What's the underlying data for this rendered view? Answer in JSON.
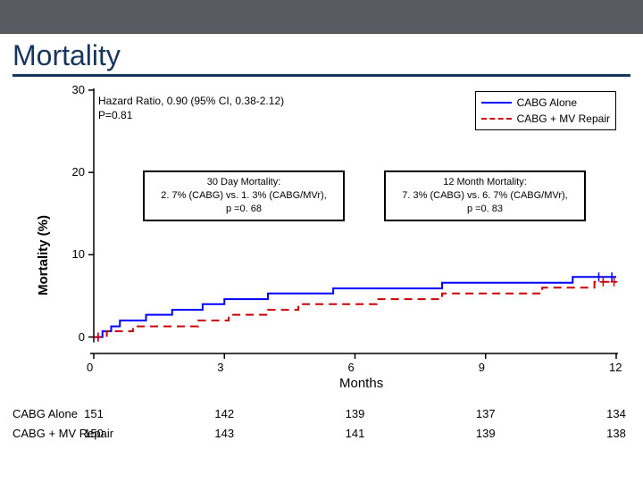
{
  "colors": {
    "top_bar": "#5a5a63",
    "title": "#17365d",
    "underline": "#17365d",
    "series_cabg": "#0000ff",
    "series_cabg_mvr": "#cc0000",
    "axis": "#000000",
    "text": "#000000",
    "background": "#ffffff"
  },
  "title": "Mortality",
  "chart": {
    "type": "step-line",
    "xlabel": "Months",
    "ylabel": "Mortality (%)",
    "xlim": [
      0,
      12
    ],
    "ylim": [
      -2,
      30
    ],
    "xticks": [
      0,
      3,
      6,
      9,
      12
    ],
    "yticks": [
      0,
      10,
      20,
      30
    ],
    "hazard_ratio_line1": "Hazard Ratio, 0.90 (95% CI, 0.38-2.12)",
    "hazard_ratio_line2": "P=0.81",
    "legend": {
      "items": [
        {
          "label": "CABG Alone",
          "color": "#0000ff",
          "dash": "solid"
        },
        {
          "label": "CABG + MV Repair",
          "color": "#cc0000",
          "dash": "dashed"
        }
      ]
    },
    "series": [
      {
        "name": "CABG Alone",
        "color": "#0000ff",
        "dash": "solid",
        "line_width": 2,
        "points": [
          [
            0,
            0
          ],
          [
            0.2,
            0.7
          ],
          [
            0.4,
            1.3
          ],
          [
            0.6,
            2.0
          ],
          [
            1.2,
            2.7
          ],
          [
            1.8,
            3.3
          ],
          [
            2.5,
            4.0
          ],
          [
            3.0,
            4.6
          ],
          [
            4.0,
            5.3
          ],
          [
            5.0,
            5.3
          ],
          [
            5.5,
            5.9
          ],
          [
            7.0,
            5.9
          ],
          [
            8.0,
            6.6
          ],
          [
            10.5,
            6.6
          ],
          [
            11.0,
            7.3
          ],
          [
            12.0,
            7.3
          ]
        ]
      },
      {
        "name": "CABG + MV Repair",
        "color": "#cc0000",
        "dash": "dashed",
        "line_width": 2,
        "points": [
          [
            0,
            0
          ],
          [
            0.3,
            0.7
          ],
          [
            0.9,
            1.3
          ],
          [
            2.0,
            1.3
          ],
          [
            2.4,
            2.0
          ],
          [
            3.1,
            2.7
          ],
          [
            4.0,
            3.3
          ],
          [
            4.7,
            4.0
          ],
          [
            6.0,
            4.0
          ],
          [
            6.5,
            4.6
          ],
          [
            8.0,
            5.3
          ],
          [
            9.5,
            5.3
          ],
          [
            10.3,
            6.0
          ],
          [
            11.5,
            6.7
          ],
          [
            12.0,
            6.7
          ]
        ]
      }
    ],
    "censor_ticks": [
      {
        "series": 0,
        "x": 0.1,
        "y": 0
      },
      {
        "series": 0,
        "x": 11.6,
        "y": 7.3
      },
      {
        "series": 0,
        "x": 11.9,
        "y": 7.3
      },
      {
        "series": 1,
        "x": 0.1,
        "y": 0
      },
      {
        "series": 1,
        "x": 11.7,
        "y": 6.7
      },
      {
        "series": 1,
        "x": 11.95,
        "y": 6.7
      }
    ]
  },
  "annotations": {
    "left": {
      "line1": "30 Day Mortality:",
      "line2": "2. 7% (CABG) vs. 1. 3% (CABG/MVr),",
      "line3": "p =0. 68"
    },
    "right": {
      "line1": "12 Month Mortality:",
      "line2": "7. 3% (CABG) vs. 6. 7% (CABG/MVr),",
      "line3": "p =0. 83"
    }
  },
  "risk_table": {
    "rows": [
      {
        "label": "CABG Alone",
        "values": [
          "151",
          "142",
          "139",
          "137",
          "134"
        ]
      },
      {
        "label": "CABG + MV Repair",
        "values": [
          "150",
          "143",
          "141",
          "139",
          "138"
        ]
      }
    ]
  }
}
